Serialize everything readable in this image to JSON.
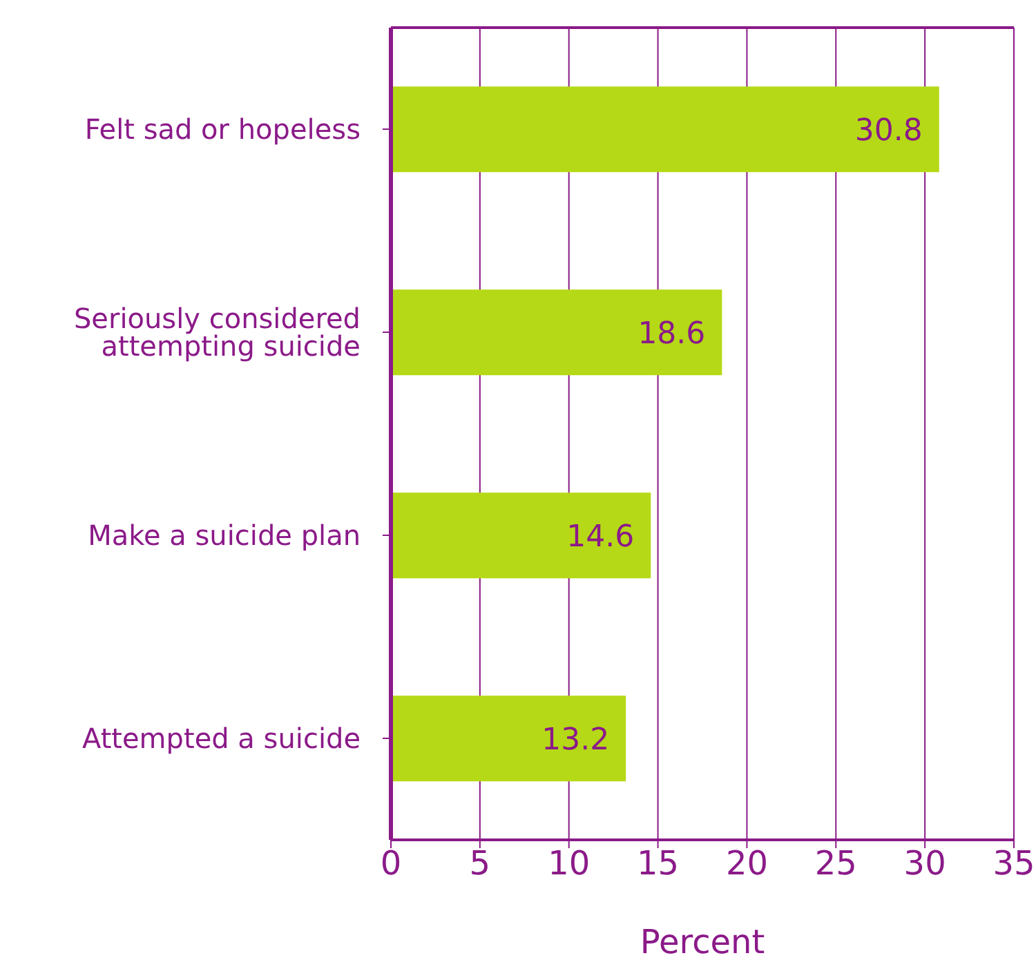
{
  "chart_data": {
    "type": "bar",
    "orientation": "horizontal",
    "categories": [
      "Felt sad or hopeless",
      "Seriously considered attempting suicide",
      "Make a suicide plan",
      "Attempted a suicide"
    ],
    "values": [
      30.8,
      18.6,
      14.6,
      13.2
    ],
    "color": "#b5d916",
    "xlabel": "Percent",
    "xlim": [
      0,
      35
    ],
    "xticks": [
      0,
      5,
      10,
      15,
      20,
      25,
      30,
      35
    ],
    "grid": "x",
    "data_labels": true
  }
}
